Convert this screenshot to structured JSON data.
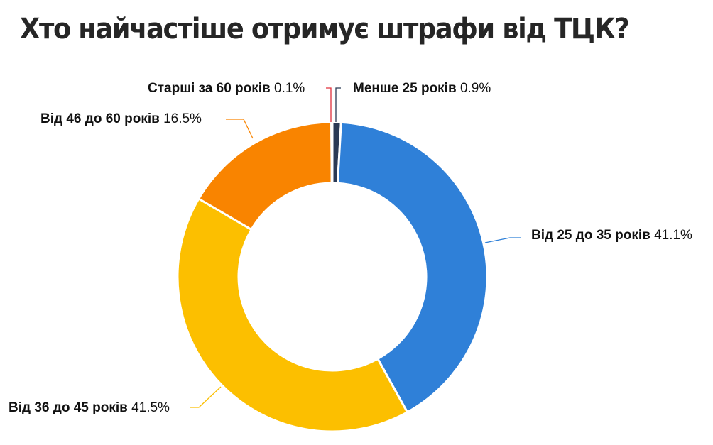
{
  "title": "Хто найчастіше отримує штрафи від ТЦК?",
  "chart_data": {
    "type": "pie",
    "subtype": "donut",
    "title": "Хто найчастіше отримує штрафи від ТЦК?",
    "start_angle": "12 o'clock, clockwise",
    "categories": [
      "Менше 25 років",
      "Від 25 до 35 років",
      "Від 36 до 45 років",
      "Від 46 до 60 років",
      "Старші за 60 років"
    ],
    "values": [
      0.9,
      41.1,
      41.5,
      16.5,
      0.1
    ],
    "value_labels": [
      "0.9%",
      "41.1%",
      "41.5%",
      "16.5%",
      "0.1%"
    ],
    "colors": [
      "#2b3a55",
      "#2f80d8",
      "#fcbf00",
      "#f98400",
      "#e0303c"
    ],
    "legend": "none (data labels with leader lines)"
  },
  "labels": [
    {
      "name": "Менше 25 років",
      "pct": "0.9%"
    },
    {
      "name": "Від 25 до 35 років",
      "pct": "41.1%"
    },
    {
      "name": "Від 36 до 45 років",
      "pct": "41.5%"
    },
    {
      "name": "Від 46 до 60 років",
      "pct": "16.5%"
    },
    {
      "name": "Старші за 60 років",
      "pct": "0.1%"
    }
  ]
}
